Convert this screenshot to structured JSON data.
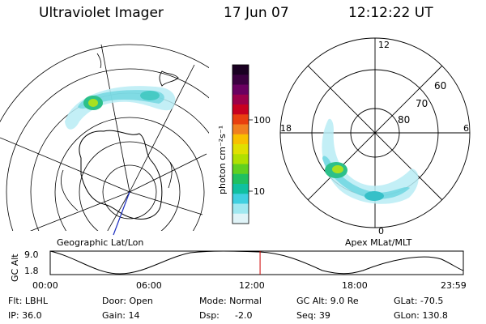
{
  "header": {
    "title": "Ultraviolet Imager",
    "date": "17 Jun 07",
    "time": "12:12:22 UT"
  },
  "colorbar": {
    "unit_label": "photon cm⁻²s⁻¹",
    "ticks": [
      "100",
      "10"
    ],
    "colors": [
      "#1a0022",
      "#3b0040",
      "#6a0060",
      "#9c004a",
      "#c80020",
      "#e84010",
      "#f08020",
      "#f8c000",
      "#e0e000",
      "#b0e000",
      "#60d020",
      "#20c060",
      "#10c0a0",
      "#40d0e0",
      "#a0e8f0",
      "#e0f4f8"
    ]
  },
  "geo_map": {
    "label": "Geographic Lat/Lon"
  },
  "apex_map": {
    "label": "Apex MLat/MLT",
    "mlt_labels": {
      "top": "12",
      "left": "18",
      "right": "6",
      "bottom": "0"
    },
    "lat_labels": [
      "60",
      "70",
      "80"
    ]
  },
  "timeline": {
    "axis_label": "GC Alt",
    "y_ticks": [
      "9.0",
      "1.8"
    ],
    "x_ticks": [
      "00:00",
      "06:00",
      "12:00",
      "18:00",
      "23:59"
    ],
    "current_time_fraction": 0.508,
    "current_marker_color": "#cc0000"
  },
  "info": {
    "flt": "Flt: LBHL",
    "door": "Door: Open",
    "mode": "Mode: Normal",
    "gc_alt": "GC Alt: 9.0 Re",
    "glat": "GLat: -70.5",
    "ip": "IP: 36.0",
    "gain": "Gain: 14",
    "dsp_label": "Dsp:",
    "dsp_value": "-2.0",
    "seq": "Seq: 39",
    "glon": "GLon: 130.8"
  }
}
